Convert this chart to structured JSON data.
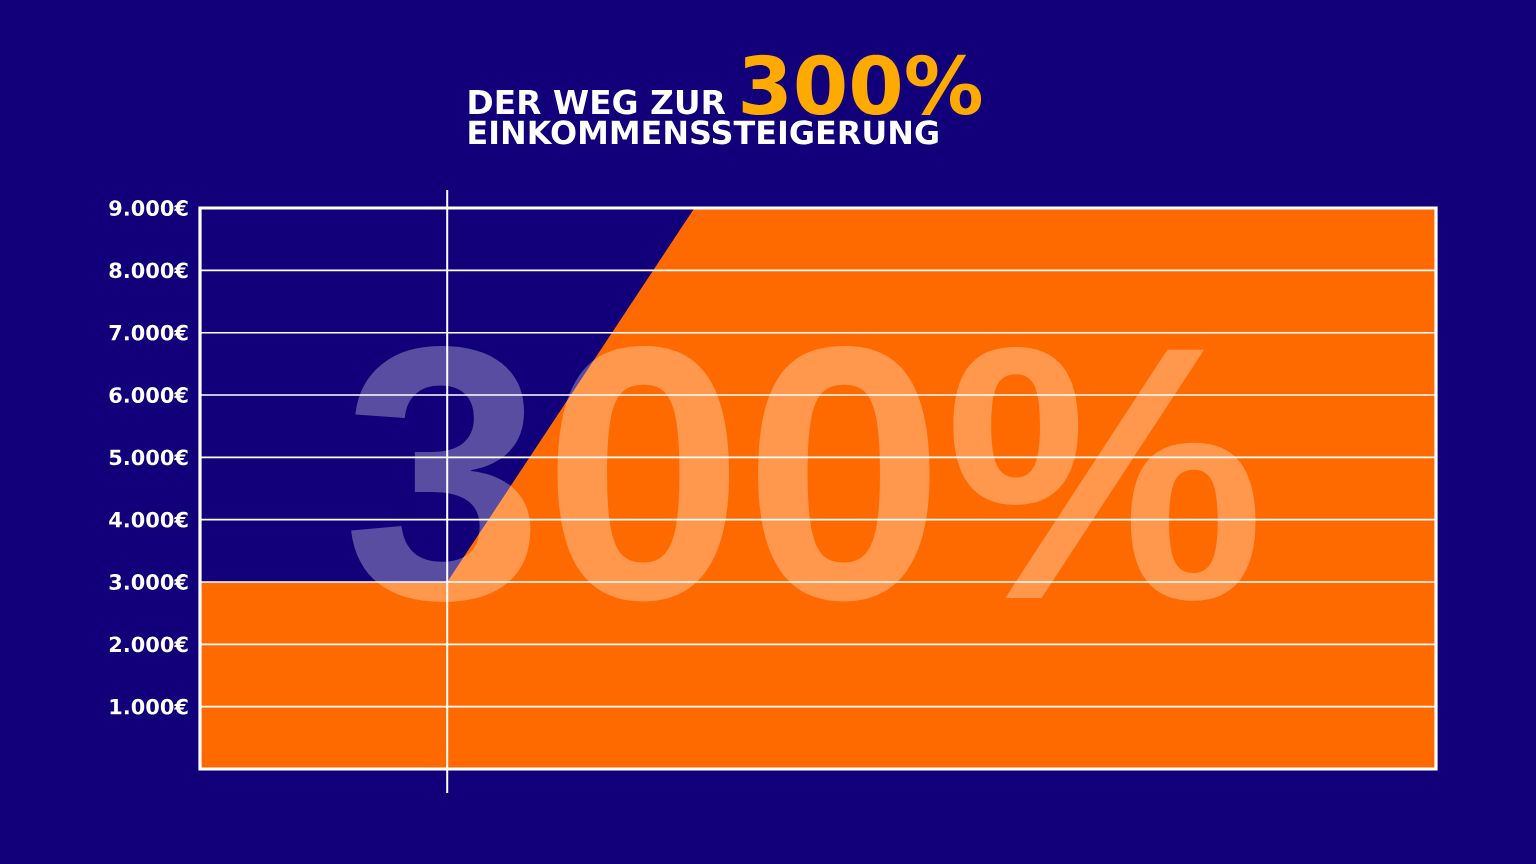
{
  "chart_data": {
    "type": "area",
    "title": "DER WEG ZUR **300%**",
    "subtitle": "EINKOMMENSSTEIGERUNG",
    "categories": [
      null,
      null,
      null,
      null,
      null,
      null
    ],
    "values": [
      3000,
      3000,
      9000,
      9000,
      9000,
      9000
    ],
    "color": "#ff6a00",
    "ylim": [
      0,
      9000
    ],
    "yticks": [
      {
        "value": 1000,
        "label": "1.000€"
      },
      {
        "value": 2000,
        "label": "2.000€"
      },
      {
        "value": 3000,
        "label": "3.000€"
      },
      {
        "value": 4000,
        "label": "4.000€"
      },
      {
        "value": 5000,
        "label": "5.000€"
      },
      {
        "value": 6000,
        "label": "6.000€"
      },
      {
        "value": 7000,
        "label": "7.000€"
      },
      {
        "value": 8000,
        "label": "8.000€"
      },
      {
        "value": 9000,
        "label": "9.000€"
      }
    ],
    "tick_labels": "y",
    "grid": "y",
    "annotations": [
      "300%"
    ]
  }
}
